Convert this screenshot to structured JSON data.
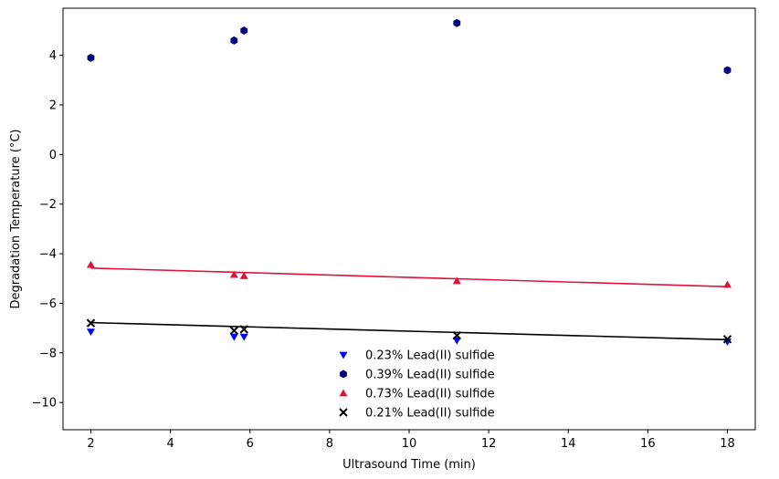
{
  "chart_data": {
    "type": "scatter",
    "title": "",
    "xlabel": "Ultrasound Time (min)",
    "ylabel": "Degradation Temperature (°C)",
    "xlim": [
      1.3,
      18.7
    ],
    "ylim": [
      -11.1,
      5.9
    ],
    "x_ticks": [
      2,
      4,
      6,
      8,
      10,
      12,
      14,
      16,
      18
    ],
    "y_ticks": [
      4,
      2,
      0,
      -2,
      -4,
      -6,
      -8,
      -10
    ],
    "x_tick_labels": [
      "2",
      "4",
      "6",
      "8",
      "10",
      "12",
      "14",
      "16",
      "18"
    ],
    "y_tick_labels": [
      "4",
      "2",
      "0",
      "−2",
      "−4",
      "−6",
      "−8",
      "−10"
    ],
    "grid": false,
    "legend_position": "lower-center",
    "series": [
      {
        "name": "0.23% Lead(II) sulfide",
        "marker": "triangle-down",
        "color": "#0000ff",
        "x": [
          2.0,
          5.6,
          5.85,
          11.2,
          18.0
        ],
        "y": [
          -7.15,
          -7.35,
          -7.35,
          -7.5,
          -7.55
        ]
      },
      {
        "name": "0.39% Lead(II) sulfide",
        "marker": "hexagon",
        "color": "#000080",
        "x": [
          2.0,
          5.6,
          5.85,
          11.2,
          18.0
        ],
        "y": [
          3.9,
          4.6,
          5.0,
          5.3,
          3.4
        ]
      },
      {
        "name": "0.73% Lead(II) sulfide",
        "marker": "triangle-up",
        "color": "#dc143c",
        "x": [
          2.0,
          5.6,
          5.85,
          11.2,
          18.0
        ],
        "y": [
          -4.45,
          -4.85,
          -4.9,
          -5.1,
          -5.25
        ],
        "fit": {
          "color": "#dc143c",
          "x": [
            2.0,
            18.0
          ],
          "y": [
            -4.58,
            -5.33
          ]
        }
      },
      {
        "name": "0.21% Lead(II) sulfide",
        "marker": "x",
        "color": "#000000",
        "x": [
          2.0,
          5.6,
          5.85,
          11.2,
          18.0
        ],
        "y": [
          -6.8,
          -7.1,
          -7.05,
          -7.3,
          -7.45
        ],
        "fit": {
          "color": "#000000",
          "x": [
            2.0,
            18.0
          ],
          "y": [
            -6.78,
            -7.47
          ]
        }
      }
    ]
  }
}
